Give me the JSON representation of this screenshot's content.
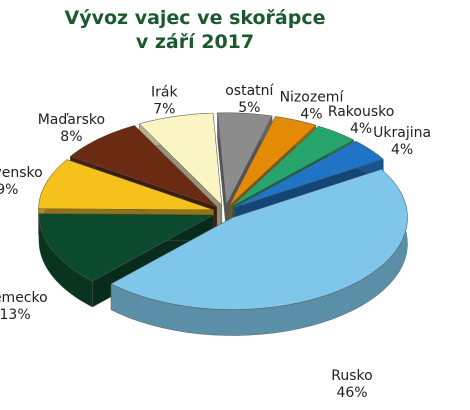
{
  "chart_data": {
    "type": "pie",
    "title": "Vývoz vajec ve skořápce\nv září 2017",
    "categories": [
      "ostatní",
      "Nizozemí",
      "Rakousko",
      "Ukrajina",
      "Rusko",
      "Německo",
      "Slovensko",
      "Maďarsko",
      "Irák"
    ],
    "values": [
      5,
      4,
      4,
      4,
      46,
      13,
      9,
      8,
      7
    ],
    "value_labels": [
      "5%",
      "4%",
      "4%",
      "4%",
      "46%",
      "13%",
      "9%",
      "8%",
      "7%"
    ],
    "colors": [
      "#8c8c8c",
      "#e38b06",
      "#25a56c",
      "#1f74c6",
      "#7ec6ea",
      "#0c4a2d",
      "#f4c21a",
      "#6a2b12",
      "#fbf5c4"
    ]
  }
}
